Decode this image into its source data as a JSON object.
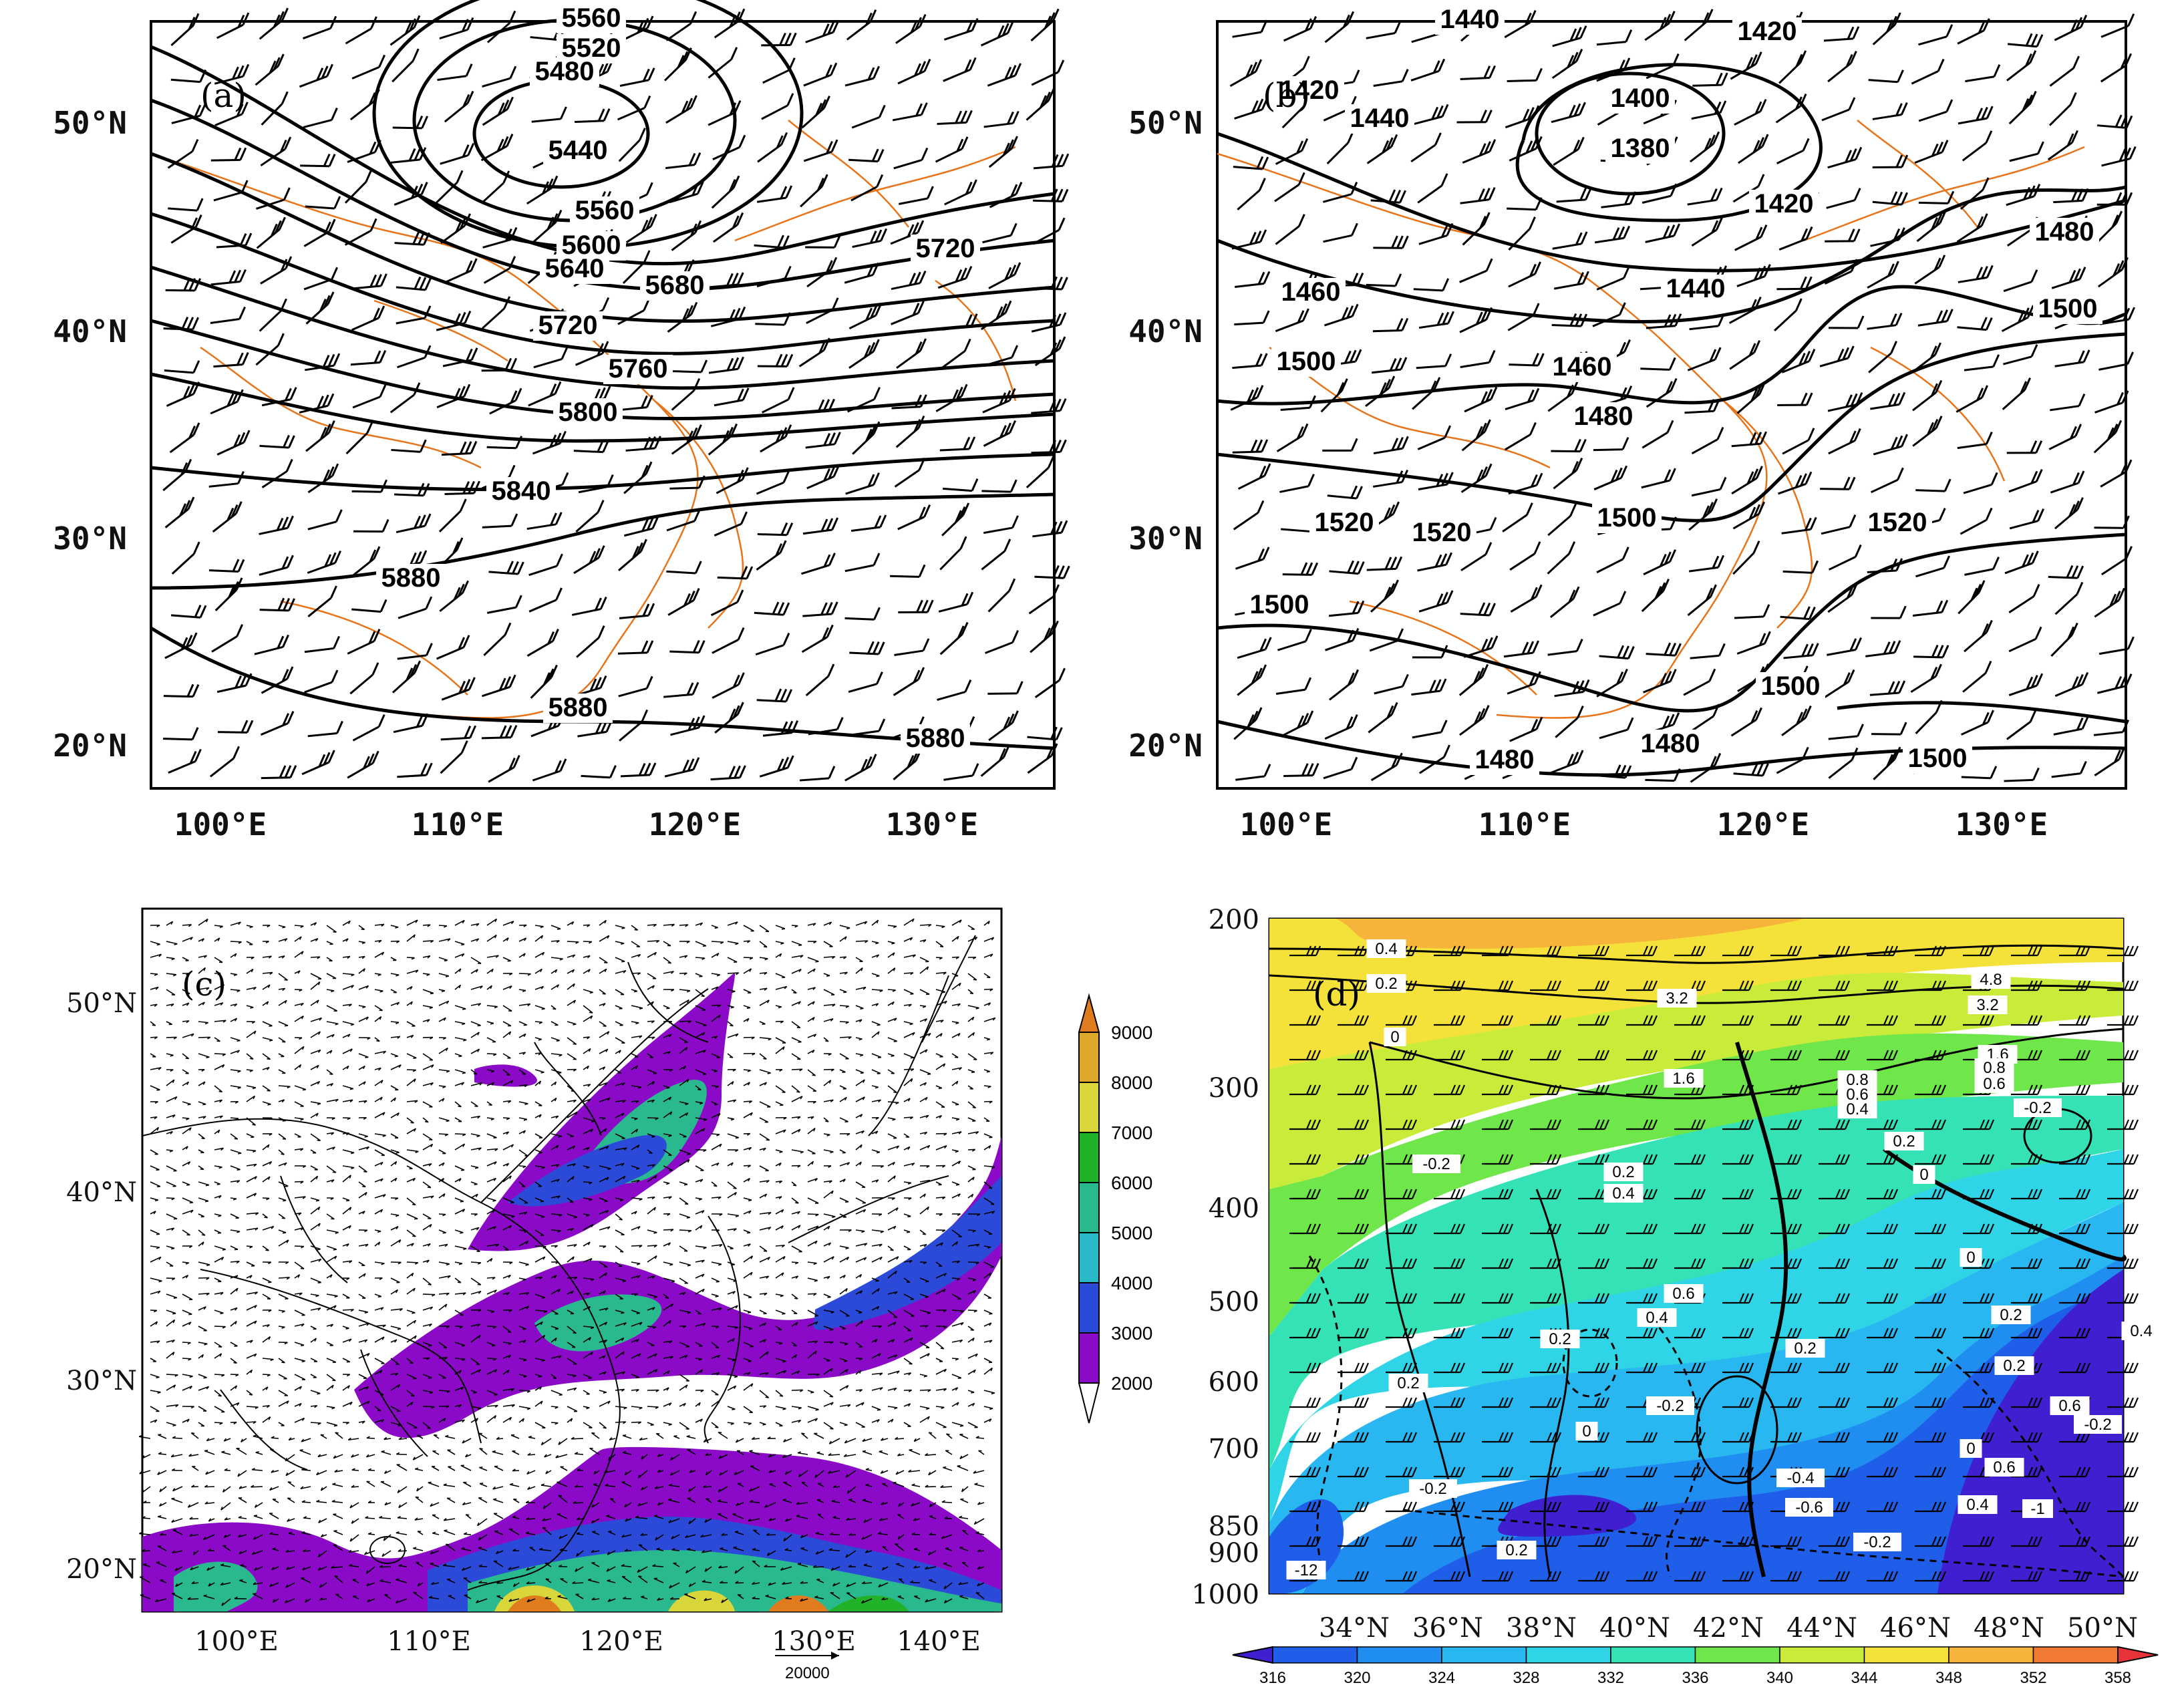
{
  "panel_a": {
    "label": "(a)",
    "x_ticks": [
      "100°E",
      "110°E",
      "120°E",
      "130°E"
    ],
    "y_ticks": [
      "50°N",
      "40°N",
      "30°N",
      "20°N"
    ],
    "contour_labels": [
      "5560",
      "5520",
      "5480",
      "5440",
      "5560",
      "5600",
      "5640",
      "5680",
      "5720",
      "5720",
      "5760",
      "5800",
      "5840",
      "5880",
      "5880",
      "5880"
    ]
  },
  "panel_b": {
    "label": "(b)",
    "x_ticks": [
      "100°E",
      "110°E",
      "120°E",
      "130°E"
    ],
    "y_ticks": [
      "50°N",
      "40°N",
      "30°N",
      "20°N"
    ],
    "contour_labels": [
      "1440",
      "1420",
      "1420",
      "1400",
      "1380",
      "1440",
      "1420",
      "1480",
      "1460",
      "1440",
      "1500",
      "1500",
      "1460",
      "1480",
      "1500",
      "1520",
      "1520",
      "1520",
      "1500",
      "1500",
      "1480",
      "1480",
      "1500"
    ]
  },
  "panel_c": {
    "label": "(c)",
    "x_ticks": [
      "100°E",
      "110°E",
      "120°E",
      "130°E",
      "140°E"
    ],
    "y_ticks": [
      "50°N",
      "40°N",
      "30°N",
      "20°N"
    ],
    "vector_ref": "20000",
    "colorbar_levels": [
      "9000",
      "8000",
      "7000",
      "6000",
      "5000",
      "4000",
      "3000",
      "2000"
    ],
    "colorbar_colors": [
      "#e07b1e",
      "#e0a82a",
      "#d8d63a",
      "#22b22a",
      "#2ab88e",
      "#28b8c8",
      "#2c4ad8",
      "#8a0ac8",
      "#ffffff"
    ]
  },
  "panel_d": {
    "label": "(d)",
    "y_ticks": [
      "200",
      "300",
      "400",
      "500",
      "600",
      "700",
      "850",
      "900",
      "1000"
    ],
    "x_ticks": [
      "34°N",
      "36°N",
      "38°N",
      "40°N",
      "42°N",
      "44°N",
      "46°N",
      "48°N",
      "50°N"
    ],
    "contour_labels": [
      "0.4",
      "0.2",
      "0",
      "3.2",
      "4.8",
      "3.2",
      "1.6",
      "1.6",
      "0.8",
      "0.6",
      "0.4",
      "0.8",
      "0.6",
      "-0.2",
      "0.2",
      "-0.2",
      "0.2",
      "0.4",
      "0",
      "0.6",
      "0.4",
      "0.2",
      "0",
      "0.2",
      "0.2",
      "0.4",
      "0.2",
      "-0.2",
      "0.2",
      "0",
      "0.6",
      "-0.2",
      "0",
      "0.6",
      "0.4",
      "-1",
      "-0.2",
      "0.2",
      "-0.4",
      "-0.6",
      "-0.2",
      "-12"
    ],
    "colorbar_levels": [
      "316",
      "320",
      "324",
      "328",
      "332",
      "336",
      "340",
      "344",
      "348",
      "352",
      "358"
    ],
    "colorbar_colors": [
      "#3f1fd0",
      "#1f5ee8",
      "#1f8ef0",
      "#29b7f2",
      "#2fd5e6",
      "#34e2b6",
      "#6fe64a",
      "#c9ec3a",
      "#f4e23a",
      "#f6b43a",
      "#f07a33",
      "#e8333b"
    ]
  }
}
